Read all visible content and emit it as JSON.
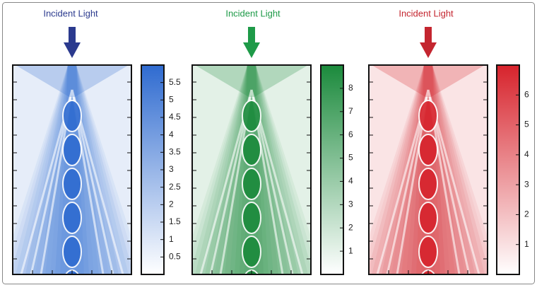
{
  "chart_data": [
    {
      "type": "heatmap",
      "title": "Incident Light",
      "title_color": "#2b3a8e",
      "color": "#2f6bd0",
      "clim": [
        0,
        6
      ],
      "cticks": [
        0.5,
        1,
        1.5,
        2,
        2.5,
        3,
        3.5,
        4,
        4.5,
        5,
        5.5
      ]
    },
    {
      "type": "heatmap",
      "title": "Incident Light",
      "title_color": "#1e9a48",
      "color": "#1b8a3c",
      "clim": [
        0,
        9
      ],
      "cticks": [
        1,
        2,
        3,
        4,
        5,
        6,
        7,
        8
      ]
    },
    {
      "type": "heatmap",
      "title": "Incident Light",
      "title_color": "#c4252f",
      "color": "#d7232c",
      "clim": [
        0,
        7
      ],
      "cticks": [
        1,
        2,
        3,
        4,
        5,
        6
      ]
    }
  ]
}
